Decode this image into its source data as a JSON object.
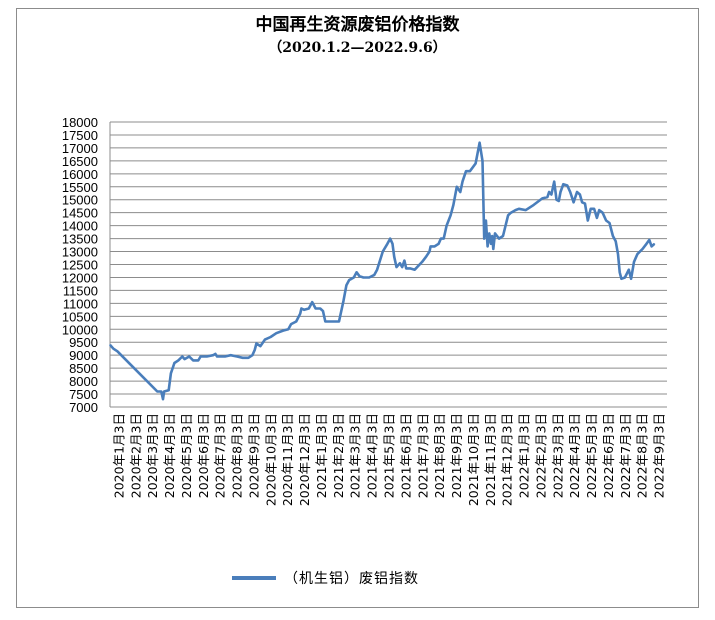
{
  "chart_data": {
    "type": "line",
    "title": "中国再生资源废铝价格指数",
    "subtitle": "（2020.1.2—2022.9.6）",
    "ylim": [
      7000,
      18000
    ],
    "y_ticks": [
      7000,
      7500,
      8000,
      8500,
      9000,
      9500,
      10000,
      10500,
      11000,
      11500,
      12000,
      12500,
      13000,
      13500,
      14000,
      14500,
      15000,
      15500,
      16000,
      16500,
      17000,
      17500,
      18000
    ],
    "x_tick_labels": [
      "2020年1月3日",
      "2020年2月3日",
      "2020年3月3日",
      "2020年4月3日",
      "2020年5月3日",
      "2020年6月3日",
      "2020年7月3日",
      "2020年8月3日",
      "2020年9月3日",
      "2020年10月3日",
      "2020年11月3日",
      "2020年12月3日",
      "2021年1月3日",
      "2021年2月3日",
      "2021年3月3日",
      "2021年4月3日",
      "2021年5月3日",
      "2021年6月3日",
      "2021年7月3日",
      "2021年8月3日",
      "2021年9月3日",
      "2021年10月3日",
      "2021年11月3日",
      "2021年12月3日",
      "2022年1月3日",
      "2022年2月3日",
      "2022年3月3日",
      "2022年4月3日",
      "2022年5月3日",
      "2022年6月3日",
      "2022年7月3日",
      "2022年8月3日",
      "2022年9月3日"
    ],
    "grid": true,
    "legend_position": "bottom",
    "series": [
      {
        "name": "（机生铝）废铝指数",
        "color": "#4a7ebb",
        "points": [
          [
            "2020-01-02",
            9400
          ],
          [
            "2020-01-08",
            9250
          ],
          [
            "2020-01-15",
            9150
          ],
          [
            "2020-03-25",
            7600
          ],
          [
            "2020-04-01",
            7600
          ],
          [
            "2020-04-04",
            7300
          ],
          [
            "2020-04-06",
            7600
          ],
          [
            "2020-04-14",
            7650
          ],
          [
            "2020-04-18",
            8300
          ],
          [
            "2020-04-24",
            8700
          ],
          [
            "2020-05-01",
            8800
          ],
          [
            "2020-05-08",
            8950
          ],
          [
            "2020-05-12",
            8850
          ],
          [
            "2020-05-20",
            8950
          ],
          [
            "2020-05-27",
            8800
          ],
          [
            "2020-06-05",
            8800
          ],
          [
            "2020-06-09",
            8950
          ],
          [
            "2020-06-20",
            8950
          ],
          [
            "2020-07-01",
            9000
          ],
          [
            "2020-07-05",
            9050
          ],
          [
            "2020-07-08",
            8950
          ],
          [
            "2020-07-22",
            8950
          ],
          [
            "2020-08-01",
            9000
          ],
          [
            "2020-08-12",
            8950
          ],
          [
            "2020-08-22",
            8900
          ],
          [
            "2020-09-01",
            8900
          ],
          [
            "2020-09-08",
            9000
          ],
          [
            "2020-09-12",
            9200
          ],
          [
            "2020-09-15",
            9450
          ],
          [
            "2020-09-22",
            9350
          ],
          [
            "2020-09-30",
            9600
          ],
          [
            "2020-10-10",
            9700
          ],
          [
            "2020-10-20",
            9850
          ],
          [
            "2020-11-01",
            9950
          ],
          [
            "2020-11-10",
            10000
          ],
          [
            "2020-11-15",
            10200
          ],
          [
            "2020-11-24",
            10300
          ],
          [
            "2020-12-01",
            10600
          ],
          [
            "2020-12-03",
            10800
          ],
          [
            "2020-12-08",
            10750
          ],
          [
            "2020-12-16",
            10800
          ],
          [
            "2020-12-22",
            11050
          ],
          [
            "2020-12-28",
            10800
          ],
          [
            "2021-01-05",
            10800
          ],
          [
            "2021-01-10",
            10700
          ],
          [
            "2021-01-14",
            10300
          ],
          [
            "2021-01-22",
            10300
          ],
          [
            "2021-02-01",
            10300
          ],
          [
            "2021-02-07",
            10300
          ],
          [
            "2021-02-15",
            11100
          ],
          [
            "2021-02-20",
            11700
          ],
          [
            "2021-02-25",
            11900
          ],
          [
            "2021-03-01",
            11950
          ],
          [
            "2021-03-05",
            12000
          ],
          [
            "2021-03-10",
            12200
          ],
          [
            "2021-03-15",
            12050
          ],
          [
            "2021-03-22",
            12000
          ],
          [
            "2021-04-01",
            12000
          ],
          [
            "2021-04-10",
            12100
          ],
          [
            "2021-04-15",
            12300
          ],
          [
            "2021-04-25",
            13000
          ],
          [
            "2021-05-03",
            13300
          ],
          [
            "2021-05-08",
            13500
          ],
          [
            "2021-05-12",
            13300
          ],
          [
            "2021-05-15",
            12800
          ],
          [
            "2021-05-19",
            12400
          ],
          [
            "2021-05-25",
            12550
          ],
          [
            "2021-05-29",
            12400
          ],
          [
            "2021-06-02",
            12650
          ],
          [
            "2021-06-05",
            12350
          ],
          [
            "2021-06-12",
            12350
          ],
          [
            "2021-06-20",
            12300
          ],
          [
            "2021-07-03",
            12600
          ],
          [
            "2021-07-10",
            12800
          ],
          [
            "2021-07-16",
            13000
          ],
          [
            "2021-07-18",
            13200
          ],
          [
            "2021-07-25",
            13200
          ],
          [
            "2021-08-01",
            13300
          ],
          [
            "2021-08-05",
            13500
          ],
          [
            "2021-08-10",
            13500
          ],
          [
            "2021-08-15",
            14000
          ],
          [
            "2021-08-22",
            14400
          ],
          [
            "2021-08-27",
            14800
          ],
          [
            "2021-09-02",
            15500
          ],
          [
            "2021-09-08",
            15300
          ],
          [
            "2021-09-12",
            15700
          ],
          [
            "2021-09-18",
            16100
          ],
          [
            "2021-09-25",
            16100
          ],
          [
            "2021-10-05",
            16400
          ],
          [
            "2021-10-12",
            17200
          ],
          [
            "2021-10-17",
            16500
          ],
          [
            "2021-10-20",
            13500
          ],
          [
            "2021-10-23",
            14200
          ],
          [
            "2021-10-26",
            13200
          ],
          [
            "2021-10-29",
            13700
          ],
          [
            "2021-11-01",
            13300
          ],
          [
            "2021-11-03",
            13600
          ],
          [
            "2021-11-05",
            13100
          ],
          [
            "2021-11-08",
            13700
          ],
          [
            "2021-11-15",
            13500
          ],
          [
            "2021-11-22",
            13600
          ],
          [
            "2021-12-01",
            14400
          ],
          [
            "2021-12-06",
            14500
          ],
          [
            "2021-12-14",
            14600
          ],
          [
            "2021-12-20",
            14650
          ],
          [
            "2022-01-01",
            14600
          ],
          [
            "2022-01-15",
            14800
          ],
          [
            "2022-01-30",
            15050
          ],
          [
            "2022-02-08",
            15100
          ],
          [
            "2022-02-11",
            15300
          ],
          [
            "2022-02-15",
            15200
          ],
          [
            "2022-02-20",
            15700
          ],
          [
            "2022-02-24",
            15000
          ],
          [
            "2022-02-28",
            14950
          ],
          [
            "2022-03-03",
            15300
          ],
          [
            "2022-03-08",
            15600
          ],
          [
            "2022-03-15",
            15550
          ],
          [
            "2022-03-20",
            15300
          ],
          [
            "2022-03-26",
            14900
          ],
          [
            "2022-04-01",
            15300
          ],
          [
            "2022-04-06",
            15200
          ],
          [
            "2022-04-10",
            14900
          ],
          [
            "2022-04-15",
            14850
          ],
          [
            "2022-04-20",
            14200
          ],
          [
            "2022-04-25",
            14650
          ],
          [
            "2022-05-01",
            14650
          ],
          [
            "2022-05-06",
            14300
          ],
          [
            "2022-05-10",
            14600
          ],
          [
            "2022-05-16",
            14500
          ],
          [
            "2022-05-22",
            14200
          ],
          [
            "2022-05-28",
            14100
          ],
          [
            "2022-06-03",
            13600
          ],
          [
            "2022-06-08",
            13400
          ],
          [
            "2022-06-12",
            12900
          ],
          [
            "2022-06-15",
            12200
          ],
          [
            "2022-06-18",
            11950
          ],
          [
            "2022-06-24",
            12000
          ],
          [
            "2022-07-01",
            12300
          ],
          [
            "2022-07-05",
            11950
          ],
          [
            "2022-07-10",
            12600
          ],
          [
            "2022-07-16",
            12900
          ],
          [
            "2022-07-25",
            13100
          ],
          [
            "2022-08-01",
            13300
          ],
          [
            "2022-08-06",
            13450
          ],
          [
            "2022-08-10",
            13200
          ],
          [
            "2022-08-15",
            13300
          ]
        ]
      }
    ]
  }
}
